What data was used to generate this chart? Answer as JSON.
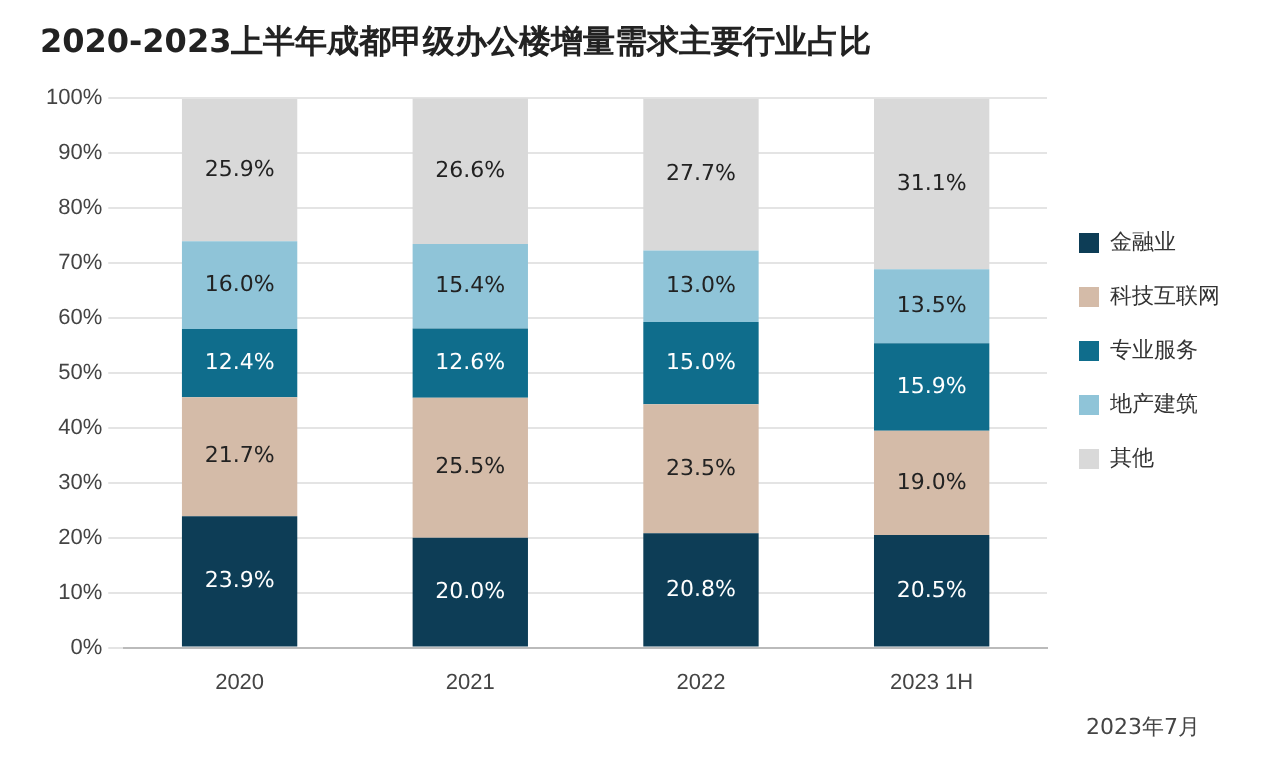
{
  "chart_data": {
    "type": "bar",
    "title": "2020-2023上半年成都甲级办公楼增量需求主要行业占比",
    "stacked": true,
    "categories": [
      "2020",
      "2021",
      "2022",
      "2023 1H"
    ],
    "series": [
      {
        "name": "金融业",
        "color": "#0d3d56",
        "values": [
          23.9,
          20.0,
          20.8,
          20.5
        ],
        "value_labels": [
          "23.9%",
          "20.0%",
          "20.8%",
          "20.5%"
        ]
      },
      {
        "name": "科技互联网",
        "color": "#d4bba8",
        "values": [
          21.7,
          25.5,
          23.5,
          19.0
        ],
        "value_labels": [
          "21.7%",
          "25.5%",
          "23.5%",
          "19.0%"
        ]
      },
      {
        "name": "专业服务",
        "color": "#0f6d8c",
        "values": [
          12.4,
          12.6,
          15.0,
          15.9
        ],
        "value_labels": [
          "12.4%",
          "12.6%",
          "15.0%",
          "15.9%"
        ]
      },
      {
        "name": "地产建筑",
        "color": "#8fc4d8",
        "values": [
          16.0,
          15.4,
          13.0,
          13.5
        ],
        "value_labels": [
          "16.0%",
          "15.4%",
          "13.0%",
          "13.5%"
        ]
      },
      {
        "name": "其他",
        "color": "#d9d9d9",
        "values": [
          25.9,
          26.6,
          27.7,
          31.1
        ],
        "value_labels": [
          "25.9%",
          "26.6%",
          "27.7%",
          "31.1%"
        ]
      }
    ],
    "ylim": [
      0,
      100
    ],
    "yticks": [
      {
        "value": 0,
        "label": "0%"
      },
      {
        "value": 10,
        "label": "10%"
      },
      {
        "value": 20,
        "label": "20%"
      },
      {
        "value": 30,
        "label": "30%"
      },
      {
        "value": 40,
        "label": "40%"
      },
      {
        "value": 50,
        "label": "50%"
      },
      {
        "value": 60,
        "label": "60%"
      },
      {
        "value": 70,
        "label": "70%"
      },
      {
        "value": 80,
        "label": "80%"
      },
      {
        "value": 90,
        "label": "90%"
      },
      {
        "value": 100,
        "label": "100%"
      }
    ],
    "grid": "y",
    "legend": "right",
    "annotations": [
      "2023年7月"
    ]
  }
}
